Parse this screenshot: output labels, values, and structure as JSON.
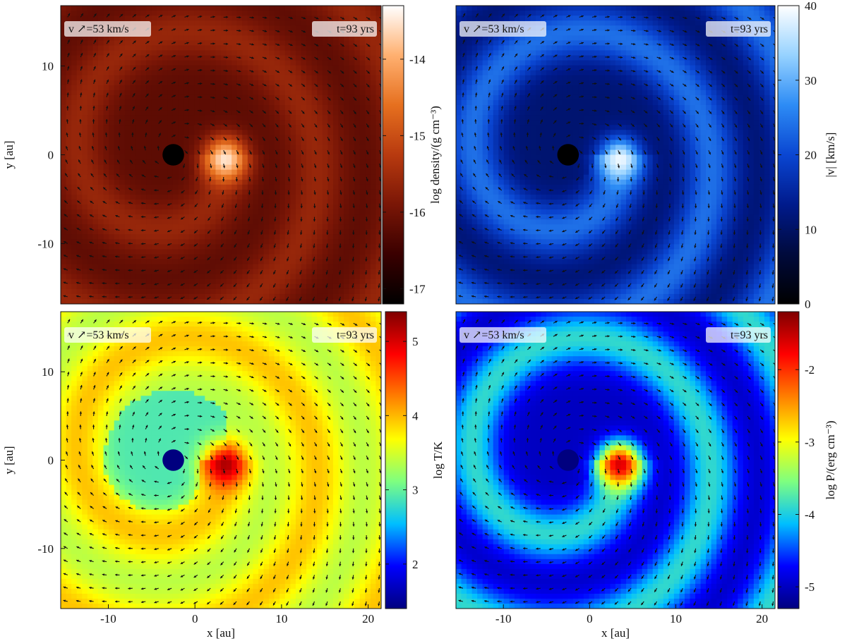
{
  "chart_data": [
    {
      "type": "heatmap",
      "id": "density",
      "quantity": "log density",
      "xlabel": "",
      "ylabel": "y [au]",
      "colorbar_label": "log density/(g cm⁻³)",
      "colorbar_ticks": [
        -17,
        -16,
        -15,
        -14
      ],
      "colorbar_range": [
        -17.2,
        -13.3
      ],
      "colormap": [
        "#000000",
        "#3a0000",
        "#7a1606",
        "#b83a0f",
        "#e6701f",
        "#ffb070",
        "#ffffff"
      ],
      "xlim": [
        -15.5,
        21.5
      ],
      "ylim": [
        -16.8,
        16.8
      ],
      "yticks": [
        -10,
        0,
        10
      ],
      "xticks": [],
      "velocity_note": "v ↗=53 km/s",
      "time_note": "t=93 yrs",
      "background_value": -16.2,
      "spiral_value": -15.6,
      "peak_value": -13.5,
      "star": {
        "x": -2.5,
        "y": 0.0,
        "radius_au": 1.0,
        "color": "#000000"
      },
      "companion": {
        "x": 3.5,
        "y": 0.0
      }
    },
    {
      "type": "heatmap",
      "id": "speed",
      "quantity": "|v|",
      "xlabel": "",
      "ylabel": "",
      "colorbar_label": "|v| [km/s]",
      "colorbar_ticks": [
        0,
        10,
        20,
        30,
        40
      ],
      "colorbar_range": [
        0,
        40
      ],
      "colormap": [
        "#000000",
        "#000a3c",
        "#001a8c",
        "#0a46d2",
        "#2d8cf5",
        "#96d2ff",
        "#ffffff"
      ],
      "xlim": [
        -15.5,
        21.5
      ],
      "ylim": [
        -16.8,
        16.8
      ],
      "yticks": [],
      "xticks": [],
      "velocity_note": "v ↗=53 km/s",
      "time_note": "t=93 yrs",
      "background_value": 11,
      "spiral_value": 24,
      "peak_value": 39,
      "star": {
        "x": -2.5,
        "y": 0.0,
        "radius_au": 1.0,
        "color": "#000000"
      },
      "companion": {
        "x": 3.5,
        "y": 0.0
      }
    },
    {
      "type": "heatmap",
      "id": "temperature",
      "quantity": "log T",
      "xlabel": "x [au]",
      "ylabel": "y [au]",
      "colorbar_label": "log T/K",
      "colorbar_ticks": [
        2,
        3,
        4,
        5
      ],
      "colorbar_range": [
        1.4,
        5.4
      ],
      "colormap": [
        "#00007f",
        "#0000ff",
        "#00bfff",
        "#7fff7f",
        "#ffff00",
        "#ff7f00",
        "#ff0000",
        "#7f0000"
      ],
      "xlim": [
        -15.5,
        21.5
      ],
      "ylim": [
        -16.8,
        16.8
      ],
      "yticks": [
        -10,
        0,
        10
      ],
      "xticks": [
        -10,
        0,
        10,
        20
      ],
      "velocity_note": "v ↗=53 km/s",
      "time_note": "t=93 yrs",
      "background_value": 3.35,
      "spiral_value": 3.95,
      "inner_value": 2.9,
      "peak_value": 5.2,
      "star": {
        "x": -2.5,
        "y": 0.0,
        "radius_au": 1.0,
        "color": "#00007f"
      },
      "companion": {
        "x": 3.5,
        "y": 0.0
      }
    },
    {
      "type": "heatmap",
      "id": "pressure",
      "quantity": "log P",
      "xlabel": "x [au]",
      "ylabel": "",
      "colorbar_label": "log P/(erg cm⁻³)",
      "colorbar_ticks": [
        -5,
        -4,
        -3,
        -2
      ],
      "colorbar_range": [
        -5.3,
        -1.2
      ],
      "colormap": [
        "#00007f",
        "#0000ff",
        "#00bfff",
        "#7fff7f",
        "#ffff00",
        "#ff7f00",
        "#ff0000",
        "#7f0000"
      ],
      "xlim": [
        -15.5,
        21.5
      ],
      "ylim": [
        -16.8,
        16.8
      ],
      "yticks": [],
      "xticks": [
        -10,
        0,
        10,
        20
      ],
      "velocity_note": "v ↗=53 km/s",
      "time_note": "t=93 yrs",
      "background_value": -5.0,
      "spiral_value": -3.9,
      "peak_value": -1.6,
      "star": {
        "x": -2.5,
        "y": 0.0,
        "radius_au": 1.0,
        "color": "#00007f"
      },
      "companion": {
        "x": 3.5,
        "y": 0.0
      }
    }
  ]
}
